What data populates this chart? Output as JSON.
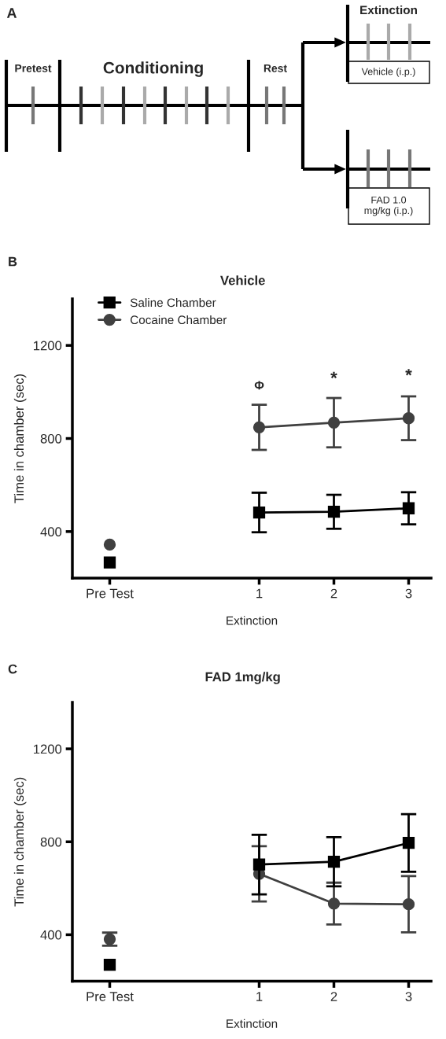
{
  "chart_data": [
    {
      "type": "other",
      "annotations": [
        "A",
        "Pretest",
        "Conditioning",
        "Rest",
        "Extinction",
        "Vehicle (i.p.)",
        "FAD 1.0\nmg/kg (i.p.)"
      ]
    },
    {
      "type": "line",
      "title": "Vehicle",
      "xlabel": "Extinction",
      "ylabel": "Time in chamber (sec)",
      "xlim": [
        -1.5,
        3.3
      ],
      "ylim": [
        200,
        1400
      ],
      "xticks": [
        {
          "value": -1,
          "label": "Pre Test"
        },
        1,
        2,
        3
      ],
      "yticks": [
        400,
        800,
        1200
      ],
      "legend": "top left",
      "grid": false,
      "series": [
        {
          "name": "Saline Chamber",
          "color": "#000000",
          "marker": "square",
          "x": [
            1,
            2,
            3
          ],
          "values": [
            482,
            485,
            500
          ],
          "errors": [
            85,
            73,
            69
          ]
        },
        {
          "name": "Cocaine Chamber",
          "color": "#404040",
          "marker": "circle",
          "x": [
            1,
            2,
            3
          ],
          "values": [
            848,
            868,
            887
          ],
          "errors": [
            97,
            106,
            94
          ]
        },
        {
          "type": "scatter",
          "color": "#404040",
          "marker": "circle",
          "x": [
            -1
          ],
          "values": [
            344
          ]
        },
        {
          "type": "scatter",
          "color": "#000000",
          "marker": "square",
          "x": [
            -1
          ],
          "values": [
            267
          ]
        }
      ],
      "annotations": [
        "B",
        "Φ",
        "*",
        "*"
      ]
    },
    {
      "type": "line",
      "title": "FAD 1mg/kg",
      "xlabel": "Extinction",
      "ylabel": "Time in chamber (sec)",
      "xlim": [
        -1.5,
        3.3
      ],
      "ylim": [
        200,
        1400
      ],
      "xticks": [
        {
          "value": -1,
          "label": "Pre Test"
        },
        1,
        2,
        3
      ],
      "yticks": [
        400,
        800,
        1200
      ],
      "grid": false,
      "series": [
        {
          "color": "#000000",
          "marker": "square",
          "x": [
            1,
            2,
            3
          ],
          "values": [
            702,
            714,
            795
          ],
          "errors": [
            128,
            106,
            124
          ]
        },
        {
          "color": "#404040",
          "marker": "circle",
          "x": [
            1,
            2,
            3
          ],
          "values": [
            662,
            534,
            531
          ],
          "errors": [
            119,
            90,
            121
          ]
        },
        {
          "type": "scatter",
          "color": "#404040",
          "marker": "circle",
          "x": [
            -1
          ],
          "values": [
            381
          ],
          "errors": [
            28
          ]
        },
        {
          "type": "scatter",
          "color": "#000000",
          "marker": "square",
          "x": [
            -1
          ],
          "values": [
            271
          ]
        }
      ],
      "annotations": [
        "C"
      ]
    }
  ]
}
